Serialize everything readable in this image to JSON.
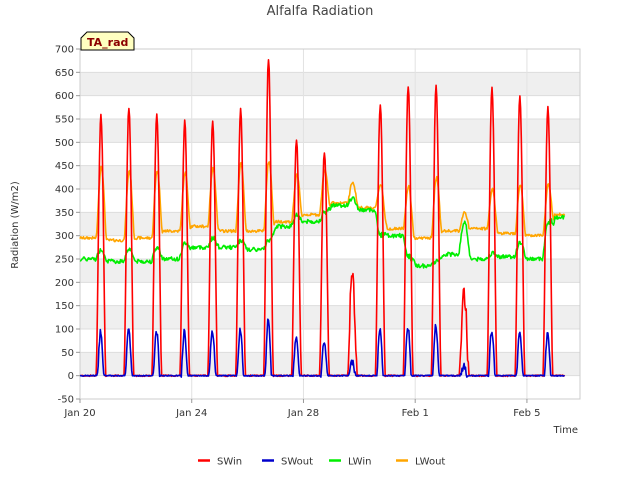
{
  "chart_data": {
    "type": "line",
    "title": "Alfalfa Radiation",
    "badge": "TA_rad",
    "xlabel": "Time",
    "ylabel": "Radiation (W/m2)",
    "xlim": [
      0,
      17.9
    ],
    "ylim": [
      -50,
      700
    ],
    "yticks": [
      -50,
      0,
      50,
      100,
      150,
      200,
      250,
      300,
      350,
      400,
      450,
      500,
      550,
      600,
      650,
      700
    ],
    "xticks": [
      {
        "value": 0,
        "label": "Jan 20"
      },
      {
        "value": 4,
        "label": "Jan 24"
      },
      {
        "value": 8,
        "label": "Jan 28"
      },
      {
        "value": 12,
        "label": "Feb 1"
      },
      {
        "value": 16,
        "label": "Feb 5"
      }
    ],
    "grid": true,
    "legend_position": "bottom",
    "days": [
      {
        "day": 0,
        "sw_peak": 560,
        "swout_peak": 97,
        "lw_night": 250,
        "lw_day": 270,
        "lwout_night": 295,
        "lwout_day": 450
      },
      {
        "day": 1,
        "sw_peak": 572,
        "swout_peak": 100,
        "lw_night": 245,
        "lw_day": 273,
        "lwout_night": 290,
        "lwout_day": 440
      },
      {
        "day": 2,
        "sw_peak": 562,
        "swout_peak": 95,
        "lw_night": 245,
        "lw_day": 275,
        "lwout_night": 295,
        "lwout_day": 440
      },
      {
        "day": 3,
        "sw_peak": 548,
        "swout_peak": 97,
        "lw_night": 250,
        "lw_day": 285,
        "lwout_night": 310,
        "lwout_day": 435
      },
      {
        "day": 4,
        "sw_peak": 545,
        "swout_peak": 95,
        "lw_night": 275,
        "lw_day": 295,
        "lwout_night": 320,
        "lwout_day": 445
      },
      {
        "day": 5,
        "sw_peak": 568,
        "swout_peak": 100,
        "lw_night": 275,
        "lw_day": 290,
        "lwout_night": 310,
        "lwout_day": 455
      },
      {
        "day": 6,
        "sw_peak": 680,
        "swout_peak": 118,
        "lw_night": 270,
        "lw_day": 290,
        "lwout_night": 310,
        "lwout_day": 460
      },
      {
        "day": 7,
        "sw_peak": 505,
        "swout_peak": 85,
        "lw_night": 320,
        "lw_day": 345,
        "lwout_night": 330,
        "lwout_day": 430
      },
      {
        "day": 8,
        "sw_peak": 478,
        "swout_peak": 75,
        "lw_night": 330,
        "lw_day": 350,
        "lwout_night": 345,
        "lwout_day": 440
      },
      {
        "day": 9,
        "sw_peak": 212,
        "swout_peak": 30,
        "lw_night": 365,
        "lw_day": 380,
        "lwout_night": 370,
        "lwout_day": 415
      },
      {
        "day": 10,
        "sw_peak": 585,
        "swout_peak": 98,
        "lw_night": 355,
        "lw_day": 300,
        "lwout_night": 360,
        "lwout_day": 410
      },
      {
        "day": 11,
        "sw_peak": 620,
        "swout_peak": 105,
        "lw_night": 300,
        "lw_day": 255,
        "lwout_night": 315,
        "lwout_day": 405
      },
      {
        "day": 12,
        "sw_peak": 622,
        "swout_peak": 105,
        "lw_night": 235,
        "lw_day": 245,
        "lwout_night": 295,
        "lwout_day": 425
      },
      {
        "day": 13,
        "sw_peak": 162,
        "swout_peak": 20,
        "lw_night": 260,
        "lw_day": 330,
        "lwout_night": 310,
        "lwout_day": 350
      },
      {
        "day": 14,
        "sw_peak": 618,
        "swout_peak": 97,
        "lw_night": 250,
        "lw_day": 262,
        "lwout_night": 315,
        "lwout_day": 400
      },
      {
        "day": 15,
        "sw_peak": 600,
        "swout_peak": 95,
        "lw_night": 255,
        "lw_day": 285,
        "lwout_night": 305,
        "lwout_day": 410
      },
      {
        "day": 16,
        "sw_peak": 575,
        "swout_peak": 90,
        "lw_night": 250,
        "lw_day": 330,
        "lwout_night": 300,
        "lwout_day": 410
      },
      {
        "day": 17,
        "sw_peak": 0,
        "swout_peak": 0,
        "lw_night": 340,
        "lw_day": 345,
        "lwout_night": 345,
        "lwout_day": 345
      }
    ],
    "series": [
      {
        "name": "SWin",
        "color": "#ff0000"
      },
      {
        "name": "SWout",
        "color": "#0000cc"
      },
      {
        "name": "LWin",
        "color": "#00ee00"
      },
      {
        "name": "LWout",
        "color": "#ffa500"
      }
    ]
  }
}
